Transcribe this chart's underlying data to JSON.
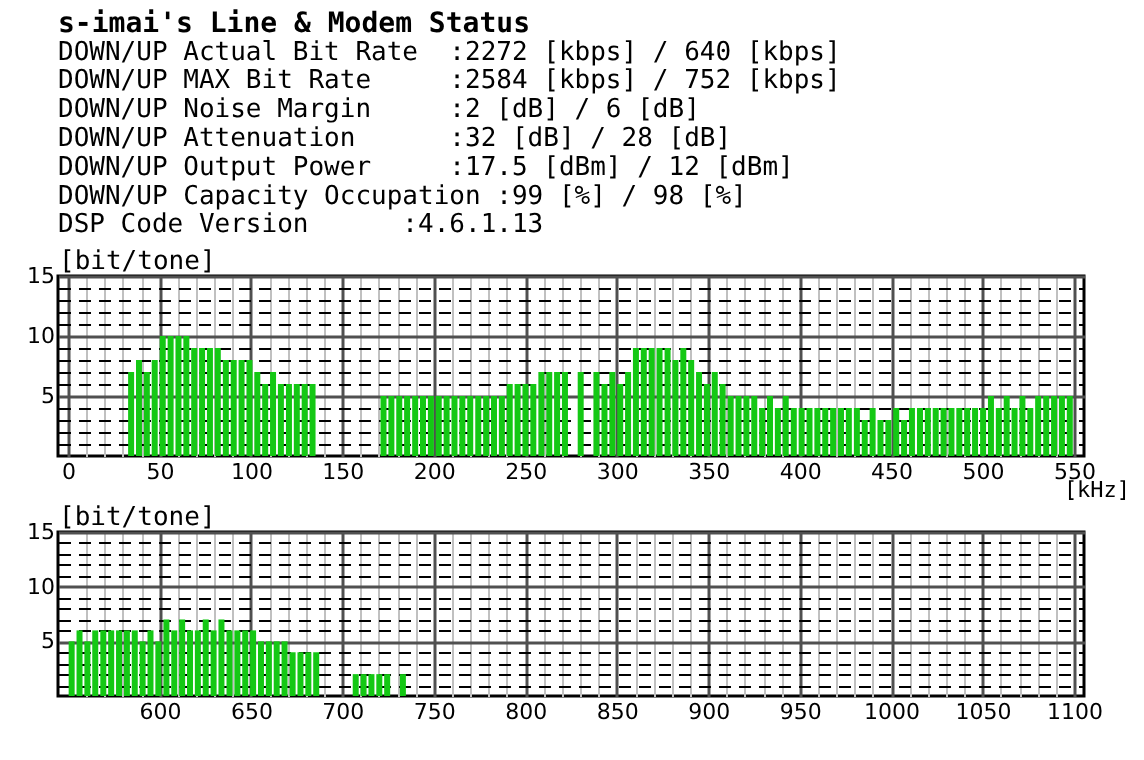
{
  "chart_data": [
    {
      "type": "bar",
      "title": "s-imai's Line & Modem Status",
      "annotations": [
        "DOWN/UP Actual Bit Rate  :2272 [kbps] / 640 [kbps]",
        "DOWN/UP MAX Bit Rate     :2584 [kbps] / 752 [kbps]",
        "DOWN/UP Noise Margin     :2 [dB] / 6 [dB]",
        "DOWN/UP Attenuation      :32 [dB] / 28 [dB]",
        "DOWN/UP Output Power     :17.5 [dBm] / 12 [dBm]",
        "DOWN/UP Capacity Occupation :99 [%] / 98 [%]",
        "DSP Code Version      :4.6.1.13"
      ],
      "xlabel": "[kHz]",
      "ylabel": "[bit/tone]",
      "color": "#14c814",
      "grid": true,
      "x": [
        34.5,
        38.8,
        43.1,
        47.4,
        51.8,
        56.1,
        60.4,
        64.7,
        69.0,
        73.3,
        77.6,
        81.9,
        86.3,
        90.6,
        94.9,
        99.2,
        103.5,
        107.8,
        112.1,
        116.4,
        120.8,
        125.1,
        129.4,
        133.7,
        172.5,
        176.8,
        181.1,
        185.4,
        189.8,
        194.1,
        198.4,
        202.7,
        207.0,
        211.3,
        215.6,
        219.9,
        224.3,
        228.6,
        232.9,
        237.2,
        241.5,
        245.8,
        250.1,
        254.4,
        258.8,
        263.1,
        267.4,
        271.7,
        280.3,
        288.9,
        293.3,
        297.6,
        301.9,
        306.2,
        310.5,
        314.8,
        319.1,
        323.4,
        327.8,
        332.1,
        336.4,
        340.7,
        345.0,
        349.3,
        353.6,
        357.9,
        362.3,
        366.6,
        370.9,
        375.2,
        379.5,
        383.8,
        388.1,
        392.4,
        396.8,
        401.1,
        405.4,
        409.7,
        414.0,
        418.3,
        422.6,
        426.9,
        431.3,
        435.6,
        439.9,
        444.2,
        448.5,
        452.8,
        457.1,
        461.4,
        465.8,
        470.1,
        474.4,
        478.7,
        483.0,
        487.3,
        491.6,
        495.9,
        500.3,
        504.6,
        508.9,
        513.2,
        517.5,
        521.8,
        526.1,
        530.4,
        534.8,
        539.1,
        543.4,
        547.7
      ],
      "values": [
        7,
        8,
        7,
        8,
        10,
        10,
        10,
        10,
        9,
        9,
        9,
        9,
        8,
        8,
        8,
        8,
        7,
        6,
        7,
        6,
        6,
        6,
        6,
        6,
        5,
        5,
        5,
        5,
        5,
        5,
        5,
        5,
        5,
        5,
        5,
        5,
        5,
        5,
        5,
        5,
        6,
        6,
        6,
        6,
        7,
        7,
        7,
        7,
        7,
        7,
        6,
        7,
        6,
        7,
        9,
        9,
        9,
        9,
        9,
        8,
        9,
        8,
        7,
        6,
        7,
        6,
        5,
        5,
        5,
        5,
        4,
        5,
        4,
        5,
        4,
        4,
        4,
        4,
        4,
        4,
        4,
        4,
        4,
        3,
        4,
        3,
        3,
        4,
        3,
        4,
        4,
        4,
        4,
        4,
        4,
        4,
        4,
        4,
        4,
        5,
        4,
        5,
        4,
        5,
        4,
        5,
        5,
        5,
        5,
        5
      ],
      "xlim": [
        0,
        550
      ],
      "xticks": [
        0,
        {
          "value": 10,
          "label": null
        },
        {
          "value": 20,
          "label": null
        },
        {
          "value": 30,
          "label": null
        },
        {
          "value": 40,
          "label": null
        },
        50,
        {
          "value": 60,
          "label": null
        },
        {
          "value": 70,
          "label": null
        },
        {
          "value": 80,
          "label": null
        },
        {
          "value": 90,
          "label": null
        },
        100,
        {
          "value": 110,
          "label": null
        },
        {
          "value": 120,
          "label": null
        },
        {
          "value": 130,
          "label": null
        },
        {
          "value": 140,
          "label": null
        },
        150,
        {
          "value": 160,
          "label": null
        },
        {
          "value": 170,
          "label": null
        },
        {
          "value": 180,
          "label": null
        },
        {
          "value": 190,
          "label": null
        },
        200,
        {
          "value": 210,
          "label": null
        },
        {
          "value": 220,
          "label": null
        },
        {
          "value": 230,
          "label": null
        },
        {
          "value": 240,
          "label": null
        },
        250,
        {
          "value": 260,
          "label": null
        },
        {
          "value": 270,
          "label": null
        },
        {
          "value": 280,
          "label": null
        },
        {
          "value": 290,
          "label": null
        },
        300,
        {
          "value": 310,
          "label": null
        },
        {
          "value": 320,
          "label": null
        },
        {
          "value": 330,
          "label": null
        },
        {
          "value": 340,
          "label": null
        },
        350,
        {
          "value": 360,
          "label": null
        },
        {
          "value": 370,
          "label": null
        },
        {
          "value": 380,
          "label": null
        },
        {
          "value": 390,
          "label": null
        },
        400,
        {
          "value": 410,
          "label": null
        },
        {
          "value": 420,
          "label": null
        },
        {
          "value": 430,
          "label": null
        },
        {
          "value": 440,
          "label": null
        },
        450,
        {
          "value": 460,
          "label": null
        },
        {
          "value": 470,
          "label": null
        },
        {
          "value": 480,
          "label": null
        },
        {
          "value": 490,
          "label": null
        },
        500,
        {
          "value": 510,
          "label": null
        },
        {
          "value": 520,
          "label": null
        },
        {
          "value": 530,
          "label": null
        },
        {
          "value": 540,
          "label": null
        },
        550
      ],
      "ylim": [
        0,
        15
      ],
      "yticks": [
        {
          "value": 1,
          "label": null
        },
        {
          "value": 2,
          "label": null
        },
        {
          "value": 3,
          "label": null
        },
        {
          "value": 4,
          "label": null
        },
        5,
        {
          "value": 6,
          "label": null
        },
        {
          "value": 7,
          "label": null
        },
        {
          "value": 8,
          "label": null
        },
        {
          "value": 9,
          "label": null
        },
        10,
        {
          "value": 11,
          "label": null
        },
        {
          "value": 12,
          "label": null
        },
        {
          "value": 13,
          "label": null
        },
        {
          "value": 14,
          "label": null
        },
        15
      ]
    },
    {
      "type": "bar",
      "ylabel": "[bit/tone]",
      "color": "#14c814",
      "grid": true,
      "x": [
        552.0,
        556.3,
        560.6,
        564.9,
        569.3,
        573.6,
        577.9,
        582.2,
        586.5,
        590.8,
        595.1,
        599.4,
        603.8,
        608.1,
        612.4,
        616.7,
        621.0,
        625.3,
        629.6,
        633.9,
        638.3,
        642.6,
        646.9,
        651.2,
        655.5,
        659.8,
        664.1,
        668.4,
        672.8,
        677.1,
        681.4,
        685.7,
        707.3,
        711.6,
        715.9,
        720.2,
        724.5,
        733.1
      ],
      "values": [
        5,
        6,
        5,
        6,
        6,
        6,
        6,
        6,
        6,
        5,
        6,
        5,
        7,
        6,
        7,
        6,
        6,
        7,
        6,
        7,
        6,
        6,
        6,
        6,
        5,
        5,
        5,
        5,
        4,
        4,
        4,
        4,
        2,
        2,
        2,
        2,
        2,
        2
      ],
      "xlim": [
        550,
        1100
      ],
      "xticks": [
        {
          "value": 560,
          "label": null
        },
        {
          "value": 570,
          "label": null
        },
        {
          "value": 580,
          "label": null
        },
        {
          "value": 590,
          "label": null
        },
        600,
        {
          "value": 610,
          "label": null
        },
        {
          "value": 620,
          "label": null
        },
        {
          "value": 630,
          "label": null
        },
        {
          "value": 640,
          "label": null
        },
        650,
        {
          "value": 660,
          "label": null
        },
        {
          "value": 670,
          "label": null
        },
        {
          "value": 680,
          "label": null
        },
        {
          "value": 690,
          "label": null
        },
        700,
        {
          "value": 710,
          "label": null
        },
        {
          "value": 720,
          "label": null
        },
        {
          "value": 730,
          "label": null
        },
        {
          "value": 740,
          "label": null
        },
        750,
        {
          "value": 760,
          "label": null
        },
        {
          "value": 770,
          "label": null
        },
        {
          "value": 780,
          "label": null
        },
        {
          "value": 790,
          "label": null
        },
        800,
        {
          "value": 810,
          "label": null
        },
        {
          "value": 820,
          "label": null
        },
        {
          "value": 830,
          "label": null
        },
        {
          "value": 840,
          "label": null
        },
        850,
        {
          "value": 860,
          "label": null
        },
        {
          "value": 870,
          "label": null
        },
        {
          "value": 880,
          "label": null
        },
        {
          "value": 890,
          "label": null
        },
        900,
        {
          "value": 910,
          "label": null
        },
        {
          "value": 920,
          "label": null
        },
        {
          "value": 930,
          "label": null
        },
        {
          "value": 940,
          "label": null
        },
        950,
        {
          "value": 960,
          "label": null
        },
        {
          "value": 970,
          "label": null
        },
        {
          "value": 980,
          "label": null
        },
        {
          "value": 990,
          "label": null
        },
        1000,
        {
          "value": 1010,
          "label": null
        },
        {
          "value": 1020,
          "label": null
        },
        {
          "value": 1030,
          "label": null
        },
        {
          "value": 1040,
          "label": null
        },
        1050,
        {
          "value": 1060,
          "label": null
        },
        {
          "value": 1070,
          "label": null
        },
        {
          "value": 1080,
          "label": null
        },
        {
          "value": 1090,
          "label": null
        },
        1100
      ],
      "ylim": [
        0,
        15
      ],
      "yticks": [
        {
          "value": 1,
          "label": null
        },
        {
          "value": 2,
          "label": null
        },
        {
          "value": 3,
          "label": null
        },
        {
          "value": 4,
          "label": null
        },
        5,
        {
          "value": 6,
          "label": null
        },
        {
          "value": 7,
          "label": null
        },
        {
          "value": 8,
          "label": null
        },
        {
          "value": 9,
          "label": null
        },
        10,
        {
          "value": 11,
          "label": null
        },
        {
          "value": 12,
          "label": null
        },
        {
          "value": 13,
          "label": null
        },
        {
          "value": 14,
          "label": null
        },
        15
      ]
    }
  ]
}
